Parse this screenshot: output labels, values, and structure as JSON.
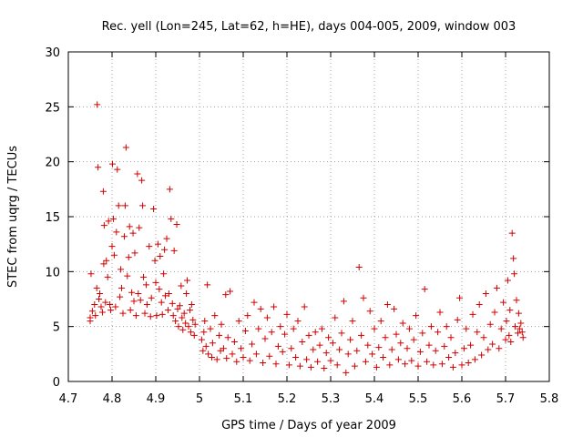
{
  "chart_data": {
    "type": "scatter",
    "title": "Rec. yell (Lon=245, Lat=62, h=HE), days 004-005, 2009, window 003",
    "xlabel": "GPS time / Days of year 2009",
    "ylabel": "STEC from uqrg / TECUs",
    "xlim": [
      4.7,
      5.8
    ],
    "ylim": [
      0,
      30
    ],
    "xticks": [
      "4.7",
      "4.8",
      "4.9",
      "5",
      "5.1",
      "5.2",
      "5.3",
      "5.4",
      "5.5",
      "5.6",
      "5.7",
      "5.8"
    ],
    "yticks": [
      "0",
      "5",
      "10",
      "15",
      "20",
      "25",
      "30"
    ],
    "grid": true,
    "marker": "+",
    "color": "#d00000",
    "points": [
      [
        4.75,
        5.5
      ],
      [
        4.75,
        5.8
      ],
      [
        4.752,
        9.8
      ],
      [
        4.755,
        6.4
      ],
      [
        4.76,
        7.0
      ],
      [
        4.762,
        6.0
      ],
      [
        4.765,
        8.5
      ],
      [
        4.766,
        25.2
      ],
      [
        4.768,
        19.5
      ],
      [
        4.77,
        7.5
      ],
      [
        4.772,
        8.0
      ],
      [
        4.775,
        6.8
      ],
      [
        4.778,
        6.3
      ],
      [
        4.78,
        17.3
      ],
      [
        4.781,
        10.7
      ],
      [
        4.782,
        14.2
      ],
      [
        4.785,
        7.2
      ],
      [
        4.787,
        11.0
      ],
      [
        4.79,
        9.5
      ],
      [
        4.792,
        14.6
      ],
      [
        4.795,
        7.0
      ],
      [
        4.797,
        6.5
      ],
      [
        4.8,
        12.3
      ],
      [
        4.801,
        19.8
      ],
      [
        4.803,
        14.8
      ],
      [
        4.805,
        11.5
      ],
      [
        4.808,
        6.8
      ],
      [
        4.81,
        13.6
      ],
      [
        4.812,
        19.3
      ],
      [
        4.815,
        16.0
      ],
      [
        4.818,
        7.7
      ],
      [
        4.82,
        10.2
      ],
      [
        4.822,
        8.5
      ],
      [
        4.825,
        6.2
      ],
      [
        4.828,
        13.2
      ],
      [
        4.83,
        16.0
      ],
      [
        4.832,
        21.3
      ],
      [
        4.835,
        9.6
      ],
      [
        4.838,
        11.3
      ],
      [
        4.84,
        14.1
      ],
      [
        4.842,
        6.5
      ],
      [
        4.845,
        8.1
      ],
      [
        4.848,
        13.5
      ],
      [
        4.85,
        7.3
      ],
      [
        4.852,
        11.7
      ],
      [
        4.855,
        6.0
      ],
      [
        4.858,
        18.9
      ],
      [
        4.86,
        8.0
      ],
      [
        4.862,
        14.0
      ],
      [
        4.865,
        7.4
      ],
      [
        4.868,
        18.3
      ],
      [
        4.87,
        16.0
      ],
      [
        4.872,
        9.5
      ],
      [
        4.875,
        6.2
      ],
      [
        4.878,
        8.8
      ],
      [
        4.88,
        7.0
      ],
      [
        4.885,
        12.3
      ],
      [
        4.888,
        5.9
      ],
      [
        4.89,
        7.6
      ],
      [
        4.895,
        15.7
      ],
      [
        4.898,
        11.0
      ],
      [
        4.9,
        9.0
      ],
      [
        4.902,
        6.0
      ],
      [
        4.905,
        12.5
      ],
      [
        4.908,
        8.4
      ],
      [
        4.91,
        11.4
      ],
      [
        4.913,
        7.2
      ],
      [
        4.915,
        6.1
      ],
      [
        4.918,
        9.8
      ],
      [
        4.92,
        12.0
      ],
      [
        4.922,
        7.8
      ],
      [
        4.925,
        13.0
      ],
      [
        4.928,
        6.5
      ],
      [
        4.93,
        8.0
      ],
      [
        4.932,
        17.5
      ],
      [
        4.935,
        14.8
      ],
      [
        4.938,
        7.1
      ],
      [
        4.94,
        6.0
      ],
      [
        4.942,
        11.9
      ],
      [
        4.945,
        5.5
      ],
      [
        4.948,
        14.3
      ],
      [
        4.95,
        6.6
      ],
      [
        4.952,
        5.0
      ],
      [
        4.955,
        6.9
      ],
      [
        4.958,
        8.7
      ],
      [
        4.96,
        5.8
      ],
      [
        4.962,
        4.7
      ],
      [
        4.965,
        6.2
      ],
      [
        4.968,
        5.3
      ],
      [
        4.97,
        8.0
      ],
      [
        4.972,
        9.2
      ],
      [
        4.975,
        5.0
      ],
      [
        4.978,
        6.5
      ],
      [
        4.98,
        4.5
      ],
      [
        4.982,
        7.0
      ],
      [
        4.985,
        5.6
      ],
      [
        4.988,
        4.2
      ],
      [
        4.99,
        5.2
      ],
      [
        5.005,
        3.8
      ],
      [
        5.008,
        2.8
      ],
      [
        5.01,
        4.5
      ],
      [
        5.012,
        5.5
      ],
      [
        5.015,
        3.2
      ],
      [
        5.018,
        8.8
      ],
      [
        5.02,
        2.5
      ],
      [
        5.025,
        4.8
      ],
      [
        5.028,
        2.2
      ],
      [
        5.03,
        3.5
      ],
      [
        5.035,
        6.0
      ],
      [
        5.04,
        2.0
      ],
      [
        5.045,
        4.2
      ],
      [
        5.048,
        2.8
      ],
      [
        5.05,
        5.2
      ],
      [
        5.055,
        3.0
      ],
      [
        5.06,
        7.9
      ],
      [
        5.062,
        2.1
      ],
      [
        5.065,
        4.0
      ],
      [
        5.07,
        8.2
      ],
      [
        5.075,
        2.5
      ],
      [
        5.08,
        3.6
      ],
      [
        5.085,
        1.8
      ],
      [
        5.09,
        5.5
      ],
      [
        5.095,
        3.0
      ],
      [
        5.1,
        2.2
      ],
      [
        5.105,
        4.6
      ],
      [
        5.11,
        6.0
      ],
      [
        5.115,
        1.9
      ],
      [
        5.12,
        3.4
      ],
      [
        5.125,
        7.2
      ],
      [
        5.13,
        2.5
      ],
      [
        5.135,
        4.8
      ],
      [
        5.14,
        6.6
      ],
      [
        5.145,
        1.7
      ],
      [
        5.15,
        3.9
      ],
      [
        5.155,
        5.8
      ],
      [
        5.16,
        2.3
      ],
      [
        5.165,
        4.5
      ],
      [
        5.17,
        6.8
      ],
      [
        5.175,
        1.6
      ],
      [
        5.18,
        3.2
      ],
      [
        5.185,
        5.0
      ],
      [
        5.19,
        2.7
      ],
      [
        5.195,
        4.3
      ],
      [
        5.2,
        6.1
      ],
      [
        5.205,
        1.5
      ],
      [
        5.21,
        3.0
      ],
      [
        5.215,
        4.8
      ],
      [
        5.22,
        2.2
      ],
      [
        5.225,
        5.5
      ],
      [
        5.23,
        1.4
      ],
      [
        5.235,
        3.6
      ],
      [
        5.24,
        6.8
      ],
      [
        5.245,
        2.0
      ],
      [
        5.25,
        4.2
      ],
      [
        5.255,
        1.3
      ],
      [
        5.26,
        2.9
      ],
      [
        5.265,
        4.5
      ],
      [
        5.27,
        1.8
      ],
      [
        5.275,
        3.3
      ],
      [
        5.28,
        4.8
      ],
      [
        5.285,
        1.2
      ],
      [
        5.29,
        2.6
      ],
      [
        5.295,
        4.0
      ],
      [
        5.3,
        1.9
      ],
      [
        5.305,
        3.5
      ],
      [
        5.31,
        5.8
      ],
      [
        5.315,
        1.5
      ],
      [
        5.32,
        2.9
      ],
      [
        5.325,
        4.4
      ],
      [
        5.33,
        7.3
      ],
      [
        5.335,
        0.8
      ],
      [
        5.34,
        2.5
      ],
      [
        5.345,
        3.8
      ],
      [
        5.35,
        5.5
      ],
      [
        5.355,
        1.4
      ],
      [
        5.36,
        2.8
      ],
      [
        5.365,
        10.4
      ],
      [
        5.37,
        4.2
      ],
      [
        5.375,
        7.6
      ],
      [
        5.38,
        1.8
      ],
      [
        5.385,
        3.3
      ],
      [
        5.39,
        6.4
      ],
      [
        5.395,
        2.5
      ],
      [
        5.4,
        4.8
      ],
      [
        5.405,
        1.3
      ],
      [
        5.41,
        3.1
      ],
      [
        5.415,
        5.5
      ],
      [
        5.42,
        2.2
      ],
      [
        5.425,
        4.0
      ],
      [
        5.43,
        7.0
      ],
      [
        5.435,
        1.5
      ],
      [
        5.44,
        2.9
      ],
      [
        5.445,
        6.6
      ],
      [
        5.45,
        4.3
      ],
      [
        5.455,
        2.0
      ],
      [
        5.46,
        3.5
      ],
      [
        5.465,
        5.3
      ],
      [
        5.47,
        1.6
      ],
      [
        5.475,
        3.0
      ],
      [
        5.48,
        4.8
      ],
      [
        5.485,
        1.9
      ],
      [
        5.49,
        3.8
      ],
      [
        5.495,
        6.0
      ],
      [
        5.5,
        1.4
      ],
      [
        5.505,
        2.7
      ],
      [
        5.51,
        4.4
      ],
      [
        5.515,
        8.4
      ],
      [
        5.52,
        1.8
      ],
      [
        5.525,
        3.3
      ],
      [
        5.53,
        5.0
      ],
      [
        5.535,
        1.5
      ],
      [
        5.54,
        2.8
      ],
      [
        5.545,
        4.5
      ],
      [
        5.55,
        6.3
      ],
      [
        5.555,
        1.6
      ],
      [
        5.56,
        3.2
      ],
      [
        5.565,
        5.0
      ],
      [
        5.57,
        2.2
      ],
      [
        5.575,
        4.0
      ],
      [
        5.58,
        1.3
      ],
      [
        5.585,
        2.6
      ],
      [
        5.59,
        5.6
      ],
      [
        5.595,
        7.6
      ],
      [
        5.6,
        1.5
      ],
      [
        5.605,
        3.0
      ],
      [
        5.61,
        4.8
      ],
      [
        5.615,
        1.7
      ],
      [
        5.62,
        3.3
      ],
      [
        5.625,
        6.1
      ],
      [
        5.63,
        2.0
      ],
      [
        5.635,
        4.5
      ],
      [
        5.64,
        7.0
      ],
      [
        5.645,
        2.4
      ],
      [
        5.65,
        4.0
      ],
      [
        5.655,
        8.0
      ],
      [
        5.66,
        2.9
      ],
      [
        5.665,
        5.2
      ],
      [
        5.67,
        3.4
      ],
      [
        5.675,
        6.3
      ],
      [
        5.68,
        8.5
      ],
      [
        5.685,
        3.0
      ],
      [
        5.69,
        4.8
      ],
      [
        5.695,
        7.2
      ],
      [
        5.7,
        3.8
      ],
      [
        5.702,
        5.5
      ],
      [
        5.705,
        9.2
      ],
      [
        5.708,
        4.2
      ],
      [
        5.71,
        6.5
      ],
      [
        5.712,
        3.6
      ],
      [
        5.715,
        13.5
      ],
      [
        5.718,
        11.2
      ],
      [
        5.72,
        9.8
      ],
      [
        5.722,
        5.0
      ],
      [
        5.725,
        7.4
      ],
      [
        5.728,
        4.4
      ],
      [
        5.73,
        6.2
      ],
      [
        5.732,
        4.8
      ],
      [
        5.735,
        5.3
      ],
      [
        5.738,
        4.5
      ],
      [
        5.74,
        4.0
      ]
    ]
  }
}
